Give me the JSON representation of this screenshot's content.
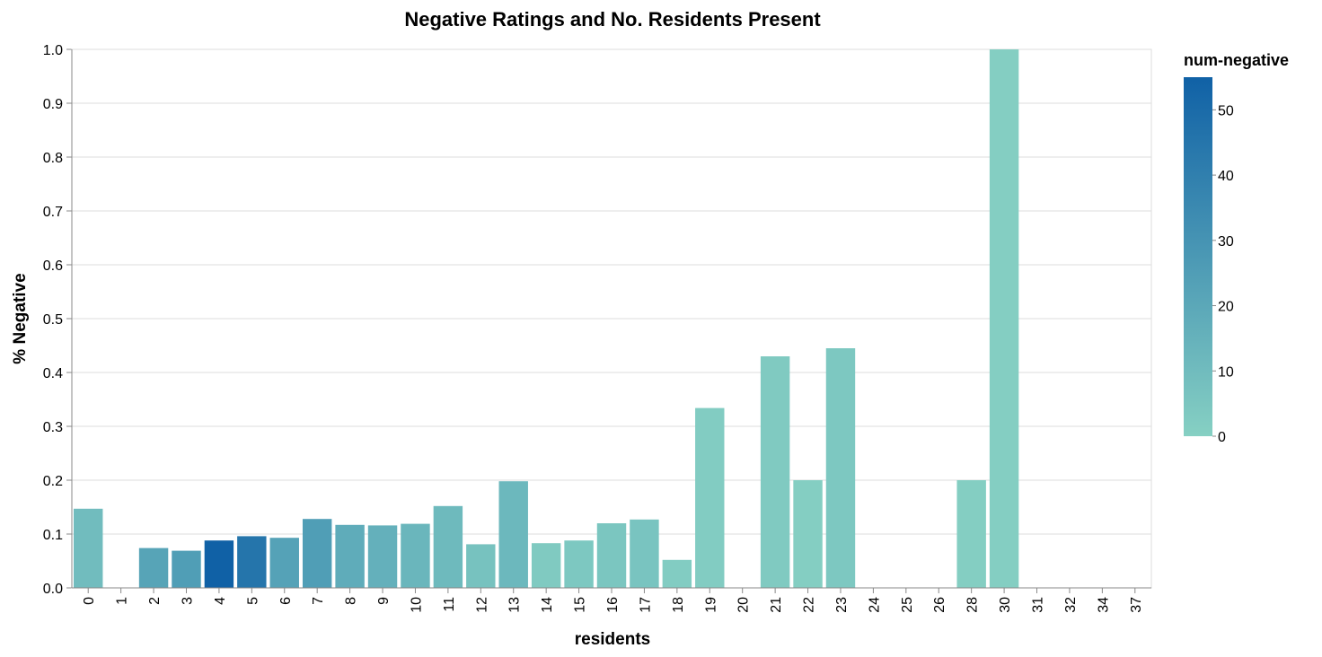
{
  "chart_data": {
    "type": "bar",
    "title": "Negative Ratings and No. Residents Present",
    "xlabel": "residents",
    "ylabel": "% Negative",
    "ylim": [
      0,
      1
    ],
    "yticks": [
      "0.0",
      "0.1",
      "0.2",
      "0.3",
      "0.4",
      "0.5",
      "0.6",
      "0.7",
      "0.8",
      "0.9",
      "1.0"
    ],
    "grid": true,
    "categories": [
      "0",
      "1",
      "2",
      "3",
      "4",
      "5",
      "6",
      "7",
      "8",
      "9",
      "10",
      "11",
      "12",
      "13",
      "14",
      "15",
      "16",
      "17",
      "18",
      "19",
      "20",
      "21",
      "22",
      "23",
      "24",
      "25",
      "26",
      "28",
      "30",
      "31",
      "32",
      "34",
      "37"
    ],
    "values": [
      0.147,
      0,
      0.074,
      0.069,
      0.088,
      0.096,
      0.093,
      0.128,
      0.117,
      0.116,
      0.119,
      0.152,
      0.081,
      0.198,
      0.083,
      0.088,
      0.12,
      0.127,
      0.052,
      0.334,
      0,
      0.43,
      0.2,
      0.445,
      0,
      0,
      0,
      0.2,
      1.0,
      0,
      0,
      0,
      0
    ],
    "num_negative": [
      10,
      0,
      22,
      25,
      55,
      45,
      23,
      25,
      18,
      16,
      13,
      11,
      7,
      12,
      3,
      4,
      5,
      6,
      2,
      2,
      0,
      3,
      1,
      4,
      0,
      0,
      0,
      1,
      1,
      0,
      0,
      0,
      0
    ],
    "legend": {
      "title": "num-negative",
      "placement": "right",
      "ticks": [
        "50",
        "40",
        "30",
        "20",
        "10",
        "0"
      ],
      "domain": [
        0,
        55
      ],
      "colors": {
        "low": "#86d0c3",
        "high": "#1061a6"
      }
    }
  }
}
